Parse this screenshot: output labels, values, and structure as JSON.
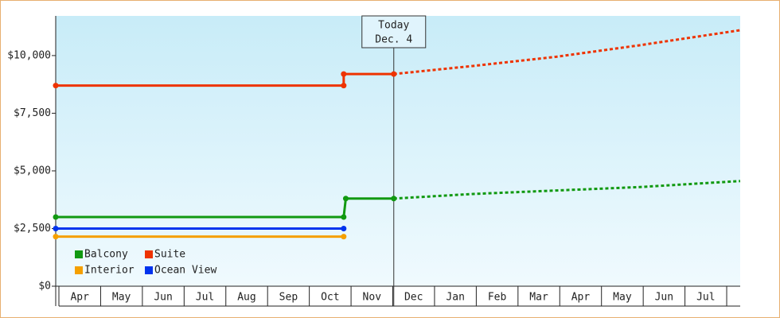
{
  "chart_data": {
    "type": "line",
    "categories": [
      "Apr",
      "May",
      "Jun",
      "Jul",
      "Aug",
      "Sep",
      "Oct",
      "Nov",
      "Dec",
      "Jan",
      "Feb",
      "Mar",
      "Apr",
      "May",
      "Jun",
      "Jul"
    ],
    "xlim": [
      0,
      16.4
    ],
    "ylim": [
      0,
      11720
    ],
    "yticks": [
      {
        "value": 0,
        "label": "$0"
      },
      {
        "value": 2500,
        "label": "$2,500"
      },
      {
        "value": 5000,
        "label": "$5,000"
      },
      {
        "value": 7500,
        "label": "$7,500"
      },
      {
        "value": 10000,
        "label": "$10,000"
      }
    ],
    "annotation": {
      "x": 8.1,
      "label": [
        "Today",
        "Dec. 4"
      ]
    },
    "legend": "lower left",
    "series": [
      {
        "name": "Balcony",
        "color": "#119911",
        "x": [
          0,
          6.9,
          6.95,
          8.1
        ],
        "values": [
          3000,
          3000,
          3800,
          3800
        ],
        "projection": {
          "x": [
            8.1,
            10,
            12,
            14,
            16.4
          ],
          "values": [
            3800,
            4000,
            4150,
            4300,
            4560
          ]
        }
      },
      {
        "name": "Suite",
        "color": "#ee3300",
        "x": [
          0,
          6.9,
          6.9,
          8.1
        ],
        "values": [
          8700,
          8700,
          9200,
          9200
        ],
        "projection": {
          "x": [
            8.1,
            10,
            12,
            14,
            16.4
          ],
          "values": [
            9200,
            9550,
            9950,
            10450,
            11100
          ]
        }
      },
      {
        "name": "Interior",
        "color": "#f5a000",
        "x": [
          0,
          6.9
        ],
        "values": [
          2150,
          2150
        ]
      },
      {
        "name": "Ocean View",
        "color": "#0033ee",
        "x": [
          0,
          6.9
        ],
        "values": [
          2500,
          2500
        ]
      }
    ]
  }
}
